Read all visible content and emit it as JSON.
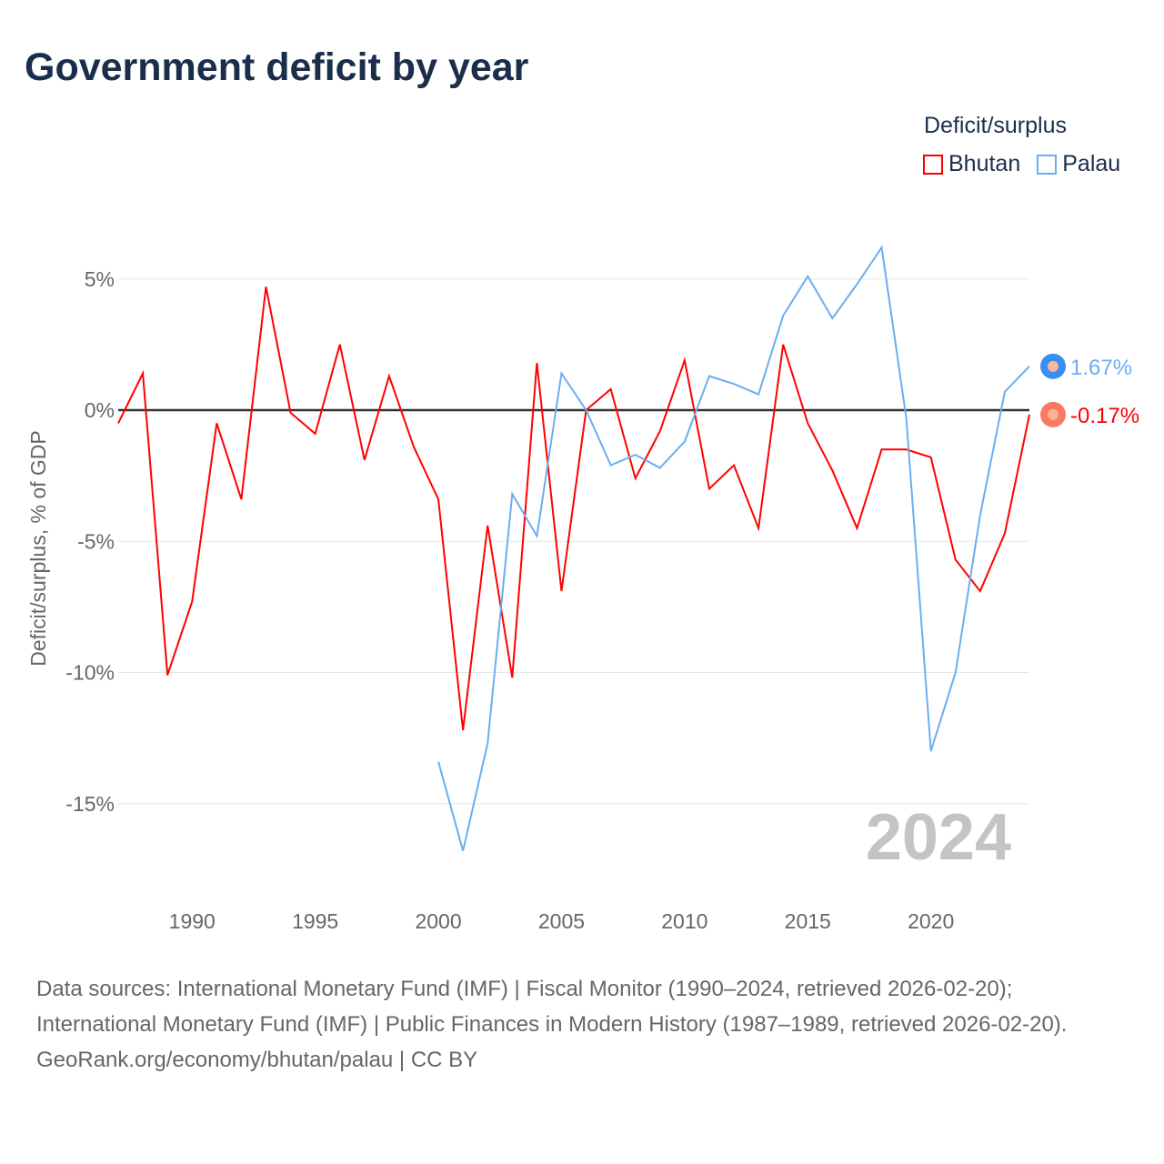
{
  "title": "Government deficit by year",
  "legend": {
    "title": "Deficit/surplus",
    "items": [
      {
        "name": "Bhutan",
        "color": "#ff0000"
      },
      {
        "name": "Palau",
        "color": "#6aaef0"
      }
    ]
  },
  "year_label": "2024",
  "end_labels": {
    "bhutan": "-0.17%",
    "palau": "1.67%"
  },
  "footer": {
    "sources": "Data sources: International Monetary Fund (IMF) | Fiscal Monitor (1990–2024, retrieved 2026-02-20); International Monetary Fund (IMF) | Public Finances in Modern History (1987–1989, retrieved 2026-02-20).",
    "credit": "GeoRank.org/economy/bhutan/palau | CC BY"
  },
  "chart_data": {
    "type": "line",
    "title": "Government deficit by year",
    "xlabel": "",
    "ylabel": "Deficit/surplus, % of GDP",
    "xlim": [
      1987,
      2024
    ],
    "ylim": [
      -17.5,
      6.5
    ],
    "yticks": [
      5,
      0,
      -5,
      -10,
      -15
    ],
    "ytick_labels": [
      "5%",
      "0%",
      "-5%",
      "-10%",
      "-15%"
    ],
    "xticks": [
      1990,
      1995,
      2000,
      2005,
      2010,
      2015,
      2020
    ],
    "xtick_labels": [
      "1990",
      "1995",
      "2000",
      "2005",
      "2010",
      "2015",
      "2020"
    ],
    "series": [
      {
        "name": "Bhutan",
        "color": "#ff0000",
        "x_start": 1987,
        "values": [
          -0.5,
          1.4,
          -10.1,
          -7.3,
          -0.5,
          -3.4,
          4.7,
          -0.1,
          -0.9,
          2.5,
          -1.9,
          1.3,
          -1.4,
          -3.4,
          -12.2,
          -4.4,
          -10.2,
          1.8,
          -6.9,
          0.0,
          0.8,
          -2.6,
          -0.8,
          1.9,
          -3.0,
          -2.1,
          -4.5,
          2.5,
          -0.5,
          -2.3,
          -4.5,
          -1.5,
          -1.5,
          -1.8,
          -5.7,
          -6.9,
          -4.7,
          -0.17
        ]
      },
      {
        "name": "Palau",
        "color": "#6aaef0",
        "x_start": 2000,
        "values": [
          -13.4,
          -16.8,
          -12.7,
          -3.2,
          -4.8,
          1.4,
          0.0,
          -2.1,
          -1.7,
          -2.2,
          -1.2,
          1.3,
          1.0,
          0.6,
          3.6,
          5.1,
          3.5,
          4.8,
          6.2,
          -0.3,
          -13.0,
          -10.0,
          -4.0,
          0.7,
          1.67
        ]
      }
    ]
  }
}
